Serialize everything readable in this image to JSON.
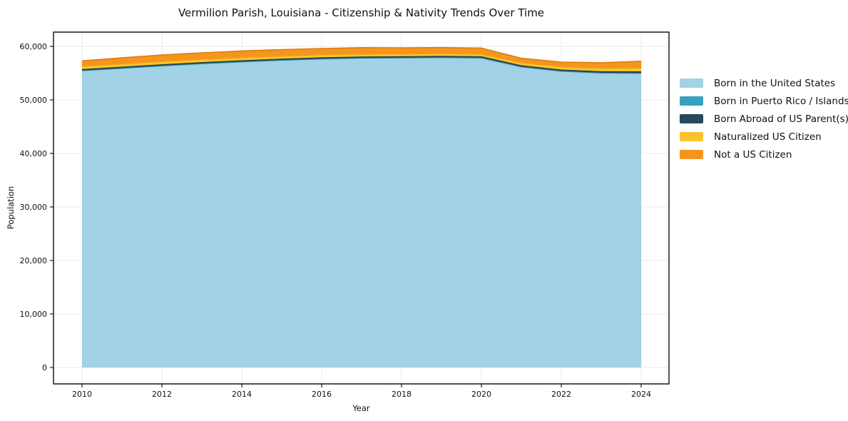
{
  "figure": {
    "background": "#ffffff"
  },
  "chart_data": {
    "type": "area",
    "stacked": true,
    "title": "Vermilion Parish, Louisiana - Citizenship & Nativity Trends Over Time",
    "xlabel": "Year",
    "ylabel": "Population",
    "x": [
      2010,
      2011,
      2012,
      2013,
      2014,
      2015,
      2016,
      2017,
      2018,
      2019,
      2020,
      2021,
      2022,
      2023,
      2024
    ],
    "xticks": [
      2010,
      2012,
      2014,
      2016,
      2018,
      2020,
      2022,
      2024
    ],
    "yticks": [
      0,
      10000,
      20000,
      30000,
      40000,
      50000,
      60000
    ],
    "ylim": [
      0,
      60000
    ],
    "grid": true,
    "grid_color": "#e9e9e9",
    "axis_color": "#1a1a1a",
    "legend_position": "right-outside",
    "series": [
      {
        "name": "Born in the United States",
        "color": "#a3d1e5",
        "edge": "#8ec4dd",
        "values": [
          55400,
          55850,
          56300,
          56700,
          57050,
          57350,
          57600,
          57750,
          57800,
          57850,
          57750,
          56100,
          55300,
          54950,
          54900
        ]
      },
      {
        "name": "Born in Puerto Rico / Islands",
        "color": "#35a1bf",
        "edge": "#2b89a3",
        "values": [
          100,
          100,
          100,
          100,
          100,
          100,
          100,
          100,
          100,
          120,
          150,
          120,
          120,
          130,
          150
        ]
      },
      {
        "name": "Born Abroad of US Parent(s)",
        "color": "#26495c",
        "edge": "#1a3644",
        "values": [
          250,
          250,
          250,
          250,
          250,
          250,
          250,
          250,
          250,
          250,
          250,
          250,
          250,
          260,
          280
        ]
      },
      {
        "name": "Naturalized US Citizen",
        "color": "#fcc22d",
        "edge": "#e5a714",
        "values": [
          550,
          550,
          550,
          550,
          550,
          520,
          500,
          480,
          450,
          450,
          430,
          500,
          550,
          600,
          650
        ]
      },
      {
        "name": "Not a US Citizen",
        "color": "#f6951e",
        "edge": "#db7d10",
        "values": [
          1000,
          1100,
          1200,
          1200,
          1200,
          1180,
          1150,
          1180,
          1130,
          1100,
          1100,
          800,
          850,
          1000,
          1250
        ]
      }
    ]
  }
}
